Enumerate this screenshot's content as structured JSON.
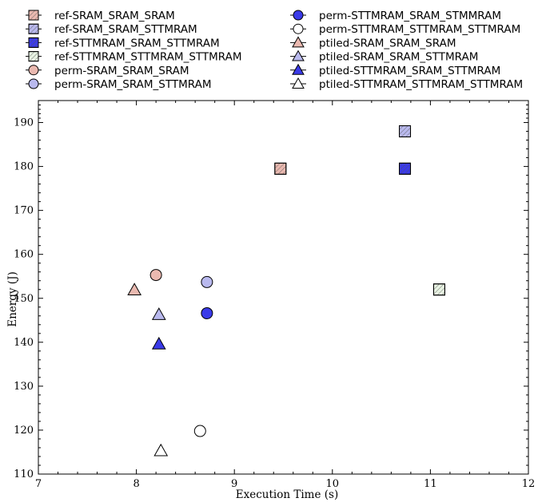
{
  "chart_data": {
    "type": "scatter",
    "xlabel": "Execution Time (s)",
    "ylabel": "Energy (J)",
    "xlim": [
      7,
      12
    ],
    "ylim": [
      110,
      195
    ],
    "xticks": [
      "7",
      "8",
      "9",
      "10",
      "11",
      "12"
    ],
    "yticks": [
      "110",
      "120",
      "130",
      "140",
      "150",
      "160",
      "170",
      "180",
      "190"
    ],
    "grid": false,
    "legend_position": "top",
    "colors": {
      "sram": "#eab9b0",
      "sttmram_mixed": "#b9b9ee",
      "stmmram_sram": "#3a3ae8",
      "sttmram_all": "#e8f3e3",
      "white": "#ffffff"
    },
    "series": [
      {
        "name": "ref-SRAM_SRAM_SRAM",
        "marker": "square",
        "fill": "sram",
        "hatch": true,
        "x": [
          9.47
        ],
        "y": [
          179.5
        ]
      },
      {
        "name": "ref-SRAM_SRAM_STTMRAM",
        "marker": "square",
        "fill": "sttmram_mixed",
        "hatch": true,
        "x": [
          10.74
        ],
        "y": [
          188
        ]
      },
      {
        "name": "ref-STTMRAM_SRAM_STTMRAM",
        "marker": "square",
        "fill": "stmmram_sram",
        "hatch": true,
        "x": [
          10.74
        ],
        "y": [
          179.5
        ]
      },
      {
        "name": "ref-STTMRAM_STTMRAM_STTMRAM",
        "marker": "square",
        "fill": "sttmram_all",
        "hatch": true,
        "x": [
          11.09
        ],
        "y": [
          152
        ]
      },
      {
        "name": "perm-SRAM_SRAM_SRAM",
        "marker": "circle",
        "fill": "sram",
        "hatch": false,
        "x": [
          8.2
        ],
        "y": [
          155.3
        ]
      },
      {
        "name": "perm-SRAM_SRAM_STTMRAM",
        "marker": "circle",
        "fill": "sttmram_mixed",
        "hatch": false,
        "x": [
          8.72
        ],
        "y": [
          153.7
        ]
      },
      {
        "name": "perm-STTMRAM_SRAM_STMMRAM",
        "marker": "circle",
        "fill": "stmmram_sram",
        "hatch": false,
        "x": [
          8.72
        ],
        "y": [
          146.6
        ]
      },
      {
        "name": "perm-STTMRAM_STTMRAM_STTMRAM",
        "marker": "circle",
        "fill": "white",
        "hatch": false,
        "x": [
          8.65
        ],
        "y": [
          119.8
        ]
      },
      {
        "name": "ptiled-SRAM_SRAM_SRAM",
        "marker": "triangle",
        "fill": "sram",
        "hatch": false,
        "x": [
          7.98
        ],
        "y": [
          151.9
        ]
      },
      {
        "name": "ptiled-SRAM_SRAM_STTMRAM",
        "marker": "triangle",
        "fill": "sttmram_mixed",
        "hatch": false,
        "x": [
          8.23
        ],
        "y": [
          146.3
        ]
      },
      {
        "name": "ptiled-STTMRAM_SRAM_STTMRAM",
        "marker": "triangle",
        "fill": "stmmram_sram",
        "hatch": false,
        "x": [
          8.23
        ],
        "y": [
          139.6
        ]
      },
      {
        "name": "ptiled-STTMRAM_STTMRAM_STTMRAM",
        "marker": "triangle",
        "fill": "white",
        "hatch": false,
        "x": [
          8.25
        ],
        "y": [
          115.3
        ]
      }
    ]
  }
}
